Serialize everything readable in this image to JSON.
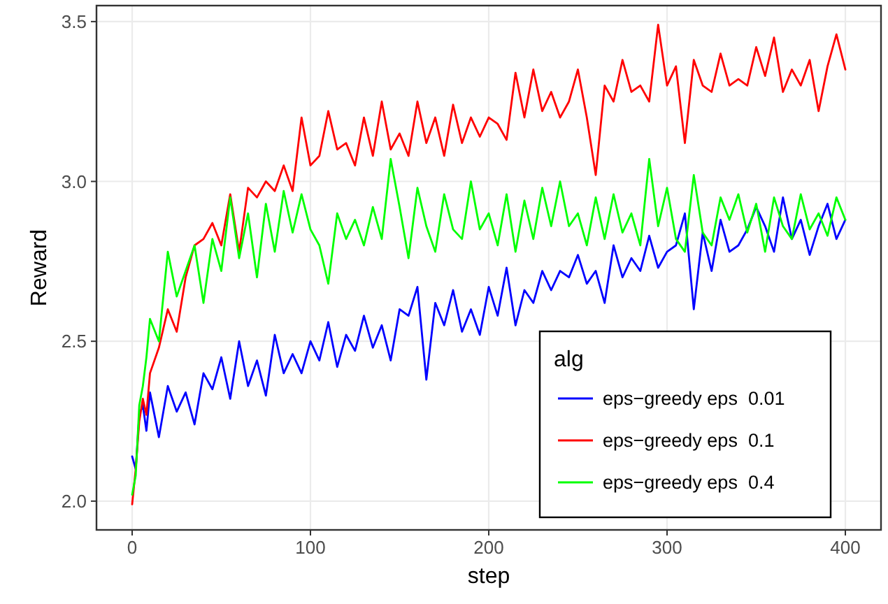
{
  "chart_data": {
    "type": "line",
    "xlabel": "step",
    "ylabel": "Reward",
    "legend_title": "alg",
    "legend": "bottom right",
    "grid": true,
    "xlim": [
      -20,
      420
    ],
    "xticks": [
      0,
      100,
      200,
      300,
      400
    ],
    "ylim": [
      1.91,
      3.55
    ],
    "yticks": [
      {
        "value": 2,
        "label": "2.0"
      },
      2.5,
      {
        "value": 3,
        "label": "3.0"
      },
      3.5
    ],
    "x": [
      0,
      2,
      4,
      6,
      8,
      10,
      15,
      20,
      25,
      30,
      35,
      40,
      45,
      50,
      55,
      60,
      65,
      70,
      75,
      80,
      85,
      90,
      95,
      100,
      105,
      110,
      115,
      120,
      125,
      130,
      135,
      140,
      145,
      150,
      155,
      160,
      165,
      170,
      175,
      180,
      185,
      190,
      195,
      200,
      205,
      210,
      215,
      220,
      225,
      230,
      235,
      240,
      245,
      250,
      255,
      260,
      265,
      270,
      275,
      280,
      285,
      290,
      295,
      300,
      305,
      310,
      315,
      320,
      325,
      330,
      335,
      340,
      345,
      350,
      355,
      360,
      365,
      370,
      375,
      380,
      385,
      390,
      395,
      400
    ],
    "series": [
      {
        "name": "eps−greedy eps  0.01",
        "color": "#0000ff",
        "values": [
          2.14,
          2.1,
          2.27,
          2.3,
          2.22,
          2.34,
          2.2,
          2.36,
          2.28,
          2.34,
          2.24,
          2.4,
          2.35,
          2.45,
          2.32,
          2.5,
          2.36,
          2.44,
          2.33,
          2.52,
          2.4,
          2.46,
          2.4,
          2.5,
          2.44,
          2.56,
          2.42,
          2.52,
          2.47,
          2.58,
          2.48,
          2.55,
          2.44,
          2.6,
          2.58,
          2.67,
          2.38,
          2.62,
          2.55,
          2.66,
          2.53,
          2.6,
          2.52,
          2.67,
          2.58,
          2.73,
          2.55,
          2.66,
          2.62,
          2.72,
          2.66,
          2.72,
          2.7,
          2.77,
          2.68,
          2.72,
          2.62,
          2.8,
          2.7,
          2.76,
          2.72,
          2.83,
          2.73,
          2.78,
          2.8,
          2.9,
          2.6,
          2.84,
          2.72,
          2.88,
          2.78,
          2.8,
          2.85,
          2.92,
          2.86,
          2.78,
          2.95,
          2.82,
          2.88,
          2.77,
          2.86,
          2.93,
          2.82,
          2.88
        ]
      },
      {
        "name": "eps−greedy eps  0.1",
        "color": "#ff0000",
        "values": [
          1.99,
          2.1,
          2.25,
          2.32,
          2.27,
          2.4,
          2.48,
          2.6,
          2.53,
          2.7,
          2.8,
          2.82,
          2.87,
          2.8,
          2.96,
          2.78,
          2.98,
          2.95,
          3.0,
          2.97,
          3.05,
          2.97,
          3.2,
          3.05,
          3.08,
          3.22,
          3.1,
          3.12,
          3.05,
          3.2,
          3.08,
          3.25,
          3.1,
          3.15,
          3.08,
          3.25,
          3.12,
          3.2,
          3.08,
          3.24,
          3.12,
          3.2,
          3.14,
          3.2,
          3.18,
          3.13,
          3.34,
          3.2,
          3.35,
          3.22,
          3.28,
          3.2,
          3.25,
          3.35,
          3.2,
          3.02,
          3.3,
          3.25,
          3.38,
          3.28,
          3.3,
          3.25,
          3.49,
          3.3,
          3.36,
          3.12,
          3.38,
          3.3,
          3.28,
          3.4,
          3.3,
          3.32,
          3.3,
          3.42,
          3.33,
          3.45,
          3.28,
          3.35,
          3.3,
          3.38,
          3.22,
          3.36,
          3.46,
          3.35
        ]
      },
      {
        "name": "eps−greedy eps  0.4",
        "color": "#00ff00",
        "values": [
          2.02,
          2.08,
          2.3,
          2.36,
          2.45,
          2.57,
          2.5,
          2.78,
          2.64,
          2.72,
          2.8,
          2.62,
          2.82,
          2.72,
          2.95,
          2.76,
          2.9,
          2.7,
          2.93,
          2.78,
          2.97,
          2.84,
          2.96,
          2.85,
          2.8,
          2.68,
          2.9,
          2.82,
          2.88,
          2.8,
          2.92,
          2.82,
          3.07,
          2.92,
          2.76,
          2.98,
          2.86,
          2.78,
          2.96,
          2.85,
          2.82,
          3.0,
          2.85,
          2.9,
          2.8,
          2.96,
          2.78,
          2.94,
          2.82,
          2.98,
          2.86,
          3.0,
          2.86,
          2.9,
          2.8,
          2.95,
          2.82,
          2.96,
          2.84,
          2.9,
          2.8,
          3.07,
          2.86,
          2.98,
          2.82,
          2.78,
          3.02,
          2.84,
          2.8,
          2.95,
          2.88,
          2.96,
          2.84,
          2.93,
          2.78,
          2.95,
          2.86,
          2.82,
          2.96,
          2.85,
          2.9,
          2.83,
          2.95,
          2.88
        ]
      }
    ]
  }
}
